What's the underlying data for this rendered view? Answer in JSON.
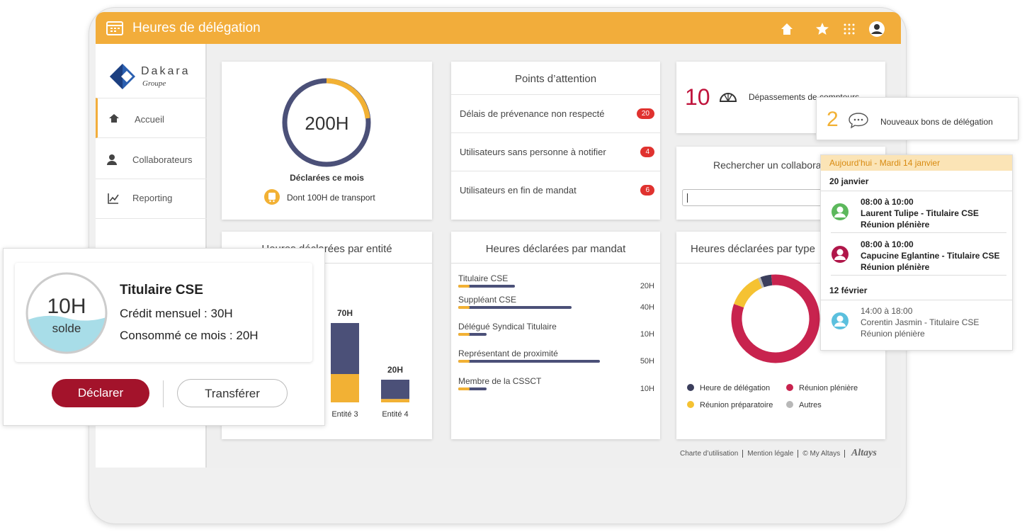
{
  "app": {
    "title": "Heures de délégation"
  },
  "brand": {
    "name": "Dakara",
    "tagline": "Groupe"
  },
  "nav": [
    "Accueil",
    "Collaborateurs",
    "Reporting"
  ],
  "monthly": {
    "total": "200H",
    "label": "Déclarées ce mois",
    "transport": "Dont 100H de transport"
  },
  "attention": {
    "title": "Points d’attention",
    "items": [
      {
        "label": "Délais de prévenance non respecté",
        "count": 20
      },
      {
        "label": "Utilisateurs sans personne à notifier",
        "count": 4
      },
      {
        "label": "Utilisateurs en fin de mandat",
        "count": 6
      }
    ]
  },
  "overruns": {
    "count": 10,
    "label": "Dépassements de compteurs"
  },
  "search": {
    "title": "Rechercher un collaborateur"
  },
  "entity_chart": {
    "type": "bar",
    "title": "Heures déclarées par entité",
    "categories": [
      "Entité 3",
      "Entité 4"
    ],
    "totals": [
      70,
      20
    ],
    "total_labels": [
      "70H",
      "20H"
    ],
    "series": [
      {
        "color": "#f2b134",
        "values": [
          25,
          3
        ]
      },
      {
        "color": "#4b5078",
        "values": [
          45,
          17
        ]
      }
    ]
  },
  "mandate_chart": {
    "type": "bar",
    "title": "Heures déclarées par mandat",
    "categories": [
      "Titulaire CSE",
      "Suppléant CSE",
      "Délégué Syndical Titulaire",
      "Représentant de proximité",
      "Membre de la CSSCT"
    ],
    "values": [
      20,
      40,
      10,
      50,
      10
    ],
    "value_labels": [
      "20H",
      "40H",
      "10H",
      "50H",
      "10H"
    ],
    "color": "#4b5078"
  },
  "type_chart": {
    "type": "pie",
    "title": "Heures déclarées par type",
    "categories": [
      "Heure de délégation",
      "Réunion plénière",
      "Réunion préparatoire",
      "Autres"
    ],
    "values": [
      4,
      82,
      13,
      1
    ],
    "colors": [
      "#3b3e5c",
      "#c8234e",
      "#f5c232",
      "#b8b8b8"
    ]
  },
  "footer": {
    "links": [
      "Charte d’utilisation",
      "Mention légale",
      "© My Altays"
    ],
    "logo": "Altays"
  },
  "balance": {
    "value": "10H",
    "label": "solde",
    "role": "Titulaire CSE",
    "credit": "Crédit mensuel : 30H",
    "consumed": "Consommé ce mois : 20H",
    "actions": [
      "Déclarer",
      "Transférer"
    ]
  },
  "new_vouchers": {
    "count": 2,
    "label": "Nouveaux bons de délégation"
  },
  "agenda": {
    "today": "Aujourd’hui - Mardi 14 janvier",
    "days": [
      {
        "date": "20 janvier",
        "events": [
          {
            "time": "08:00 à 10:00",
            "person": "Laurent Tulipe - Titulaire CSE",
            "type": "Réunion plénière",
            "color": "#5cb85c"
          },
          {
            "time": "08:00 à 10:00",
            "person": "Capucine Eglantine - Titulaire CSE",
            "type": "Réunion plénière",
            "color": "#b0174a"
          }
        ]
      },
      {
        "date": "12 février",
        "events": [
          {
            "time": "14:00 à 18:00",
            "person": "Corentin Jasmin - Titulaire CSE",
            "type": "Réunion plénière",
            "color": "#5bc0de"
          }
        ]
      }
    ]
  }
}
